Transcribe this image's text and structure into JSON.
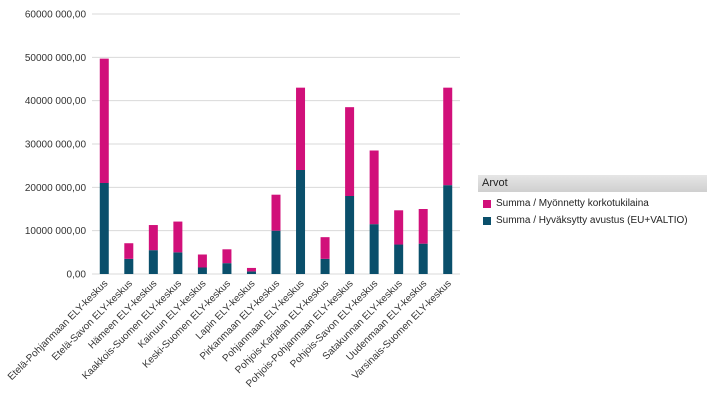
{
  "chart_data": {
    "type": "bar",
    "stacked": true,
    "categories": [
      "Etelä-Pohjanmaan ELY-keskus",
      "Etelä-Savon ELY-keskus",
      "Hämeen ELY-keskus",
      "Kaakkois-Suomen ELY-keskus",
      "Kainuun ELY-keskus",
      "Keski-Suomen ELY-keskus",
      "Lapin ELY-keskus",
      "Pirkanmaan ELY-keskus",
      "Pohjanmaan ELY-keskus",
      "Pohjois-Karjalan ELY-keskus",
      "Pohjois-Pohjanmaan ELY-keskus",
      "Pohjois-Savon ELY-keskus",
      "Satakunnan ELY-keskus",
      "Uudenmaan ELY-keskus",
      "Varsinais-Suomen ELY-keskus"
    ],
    "series": [
      {
        "name": "Summa / Hyväksytty avustus (EU+VALTIO)",
        "color": "#0a4f6b",
        "values": [
          21000,
          3500,
          5500,
          5000,
          1500,
          2500,
          600,
          10000,
          24000,
          3500,
          18000,
          11500,
          6800,
          7000,
          20500
        ]
      },
      {
        "name": "Summa / Myönnetty korkotukilaina",
        "color": "#d1107a",
        "values": [
          28700,
          3600,
          5800,
          7100,
          3000,
          3200,
          800,
          8300,
          19000,
          5000,
          20500,
          17000,
          7900,
          8000,
          22500
        ]
      }
    ],
    "ylim": [
      0,
      60000
    ],
    "yticks": [
      "0,00",
      "10000 000,00",
      "20000 000,00",
      "30000 000,00",
      "40000 000,00",
      "50000 000,00",
      "60000 000,00"
    ],
    "grid": true,
    "legend_title": "Arvot",
    "legend_order": [
      1,
      0
    ],
    "legend_position": "right"
  }
}
